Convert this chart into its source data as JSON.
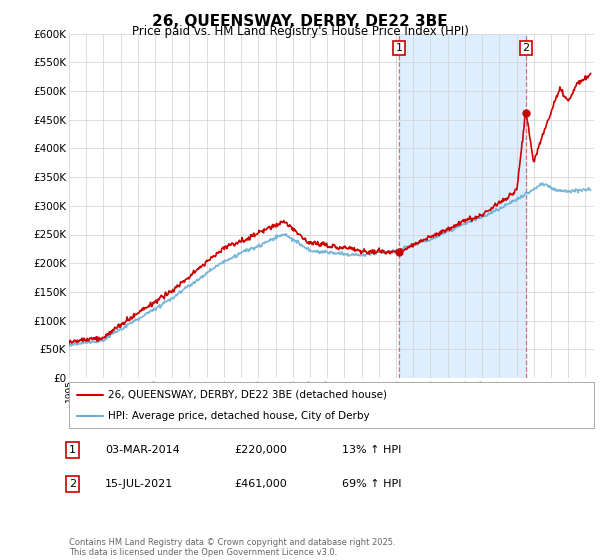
{
  "title": "26, QUEENSWAY, DERBY, DE22 3BE",
  "subtitle": "Price paid vs. HM Land Registry's House Price Index (HPI)",
  "ylim": [
    0,
    600000
  ],
  "xlim_start": 1995.0,
  "xlim_end": 2025.5,
  "hpi_color": "#6baed6",
  "price_color": "#cc0000",
  "shade_color": "#ddeeff",
  "sale1_date": 2014.17,
  "sale1_price": 220000,
  "sale2_date": 2021.54,
  "sale2_price": 461000,
  "legend_line1": "26, QUEENSWAY, DERBY, DE22 3BE (detached house)",
  "legend_line2": "HPI: Average price, detached house, City of Derby",
  "table_row1_label": "1",
  "table_row1_date": "03-MAR-2014",
  "table_row1_price": "£220,000",
  "table_row1_note": "13% ↑ HPI",
  "table_row2_label": "2",
  "table_row2_date": "15-JUL-2021",
  "table_row2_price": "£461,000",
  "table_row2_note": "69% ↑ HPI",
  "footer": "Contains HM Land Registry data © Crown copyright and database right 2025.\nThis data is licensed under the Open Government Licence v3.0.",
  "background_color": "#ffffff",
  "grid_color": "#d0d0d0"
}
